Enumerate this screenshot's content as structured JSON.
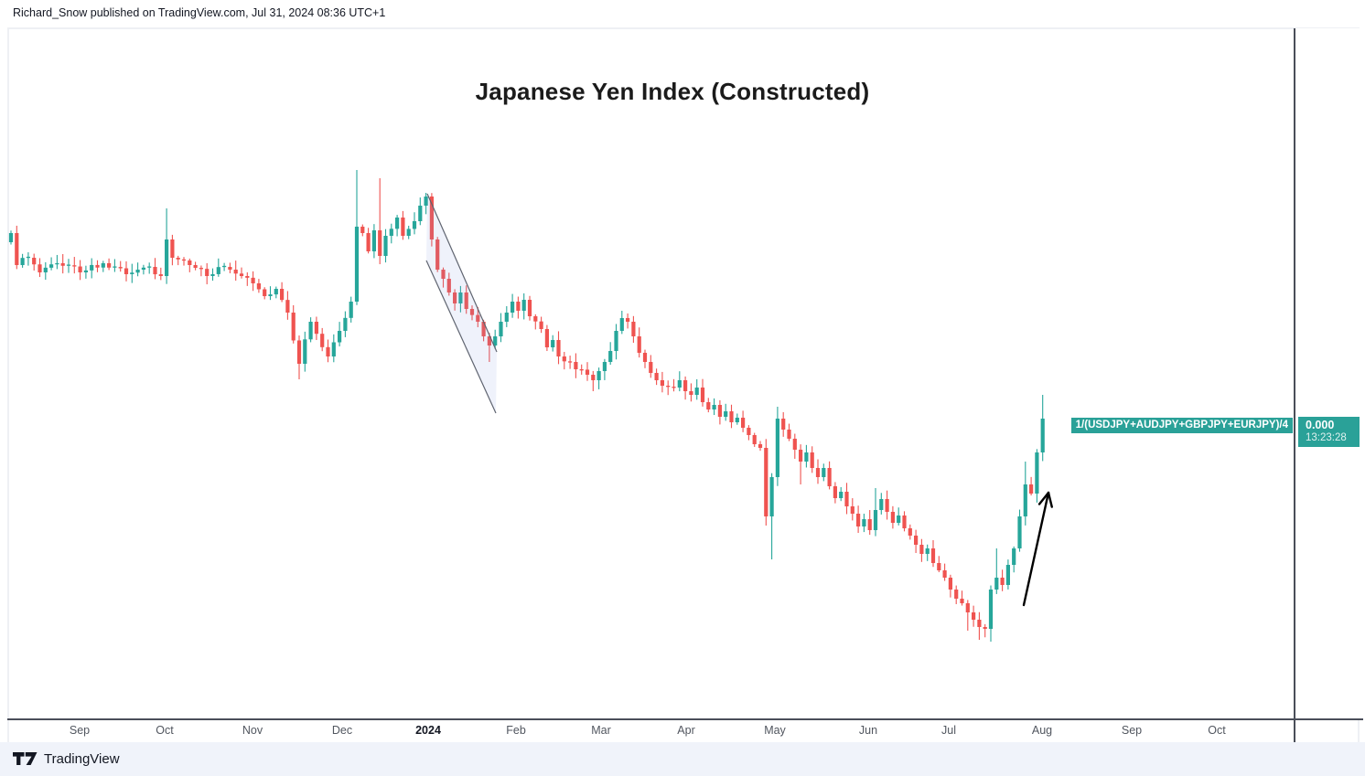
{
  "header": {
    "publish_info": "Richard_Snow published on TradingView.com, Jul 31, 2024 08:36 UTC+1"
  },
  "footer": {
    "brand": "TradingView",
    "logo_icon": "tradingview-logo"
  },
  "chart_data": {
    "type": "candlestick",
    "title": "Japanese Yen Index (Constructed)",
    "symbol_formula": "1/(USDJPY+AUDJPY+GBPJPY+EURJPY)/4",
    "last_price_label": "0.000",
    "countdown": "13:23:28",
    "y_axis_labeled": false,
    "legend_position": "none",
    "grid": false,
    "x_axis": {
      "labels": [
        "Sep",
        "Oct",
        "Nov",
        "Dec",
        "2024",
        "Feb",
        "Mar",
        "Apr",
        "May",
        "Jun",
        "Jul",
        "Aug",
        "Sep",
        "Oct"
      ],
      "positions": [
        87,
        180,
        276,
        374,
        468,
        564,
        657,
        750,
        847,
        949,
        1037,
        1139,
        1237,
        1330
      ],
      "major_index": 4
    },
    "colors": {
      "up": "#26A69A",
      "down": "#EF5350",
      "label_bg": "#2aa198",
      "arrow": "#000000",
      "channel_fill": "rgba(129,153,226,0.13)",
      "channel_stroke": "#5f6470"
    },
    "series": {
      "candle_count": 180,
      "x_start": 12,
      "pitch": 6.3,
      "body_width": 4.2,
      "wick_width": 1.1,
      "close_noise": 4,
      "wick_min": 2,
      "wick_rand": 8,
      "trend_anchors": [
        [
          0,
          255
        ],
        [
          1,
          290
        ],
        [
          3,
          282
        ],
        [
          5,
          298
        ],
        [
          8,
          288
        ],
        [
          12,
          298
        ],
        [
          16,
          288
        ],
        [
          20,
          300
        ],
        [
          24,
          292
        ],
        [
          26,
          302
        ],
        [
          27,
          262
        ],
        [
          28,
          282
        ],
        [
          31,
          290
        ],
        [
          34,
          302
        ],
        [
          37,
          292
        ],
        [
          40,
          302
        ],
        [
          42,
          310
        ],
        [
          44,
          324
        ],
        [
          46,
          316
        ],
        [
          48,
          342
        ],
        [
          50,
          398
        ],
        [
          52,
          352
        ],
        [
          55,
          390
        ],
        [
          57,
          362
        ],
        [
          59,
          330
        ],
        [
          60,
          248
        ],
        [
          61,
          255
        ],
        [
          62,
          275
        ],
        [
          63,
          252
        ],
        [
          64,
          280
        ],
        [
          65,
          258
        ],
        [
          67,
          238
        ],
        [
          68,
          258
        ],
        [
          70,
          242
        ],
        [
          71,
          225
        ],
        [
          72,
          215
        ],
        [
          73,
          262
        ],
        [
          74,
          295
        ],
        [
          75,
          305
        ],
        [
          76,
          320
        ],
        [
          77,
          332
        ],
        [
          78,
          320
        ],
        [
          79,
          338
        ],
        [
          81,
          352
        ],
        [
          82,
          368
        ],
        [
          83,
          378
        ],
        [
          84,
          368
        ],
        [
          85,
          352
        ],
        [
          86,
          342
        ],
        [
          87,
          330
        ],
        [
          88,
          340
        ],
        [
          89,
          328
        ],
        [
          90,
          346
        ],
        [
          92,
          360
        ],
        [
          93,
          380
        ],
        [
          94,
          372
        ],
        [
          95,
          390
        ],
        [
          97,
          396
        ],
        [
          98,
          404
        ],
        [
          100,
          410
        ],
        [
          101,
          416
        ],
        [
          102,
          406
        ],
        [
          103,
          396
        ],
        [
          104,
          384
        ],
        [
          105,
          362
        ],
        [
          106,
          348
        ],
        [
          107,
          352
        ],
        [
          108,
          368
        ],
        [
          109,
          386
        ],
        [
          110,
          396
        ],
        [
          111,
          408
        ],
        [
          112,
          416
        ],
        [
          113,
          422
        ],
        [
          115,
          424
        ],
        [
          116,
          416
        ],
        [
          117,
          428
        ],
        [
          118,
          432
        ],
        [
          119,
          424
        ],
        [
          120,
          440
        ],
        [
          121,
          448
        ],
        [
          122,
          443
        ],
        [
          123,
          456
        ],
        [
          124,
          450
        ],
        [
          125,
          462
        ],
        [
          126,
          457
        ],
        [
          127,
          468
        ],
        [
          128,
          476
        ],
        [
          129,
          486
        ],
        [
          130,
          490
        ],
        [
          131,
          565
        ],
        [
          132,
          522
        ],
        [
          133,
          458
        ],
        [
          134,
          470
        ],
        [
          135,
          480
        ],
        [
          136,
          492
        ],
        [
          137,
          505
        ],
        [
          138,
          495
        ],
        [
          139,
          512
        ],
        [
          140,
          522
        ],
        [
          141,
          512
        ],
        [
          142,
          532
        ],
        [
          143,
          545
        ],
        [
          144,
          538
        ],
        [
          145,
          554
        ],
        [
          146,
          562
        ],
        [
          147,
          576
        ],
        [
          148,
          568
        ],
        [
          149,
          580
        ],
        [
          150,
          558
        ],
        [
          151,
          546
        ],
        [
          152,
          560
        ],
        [
          153,
          572
        ],
        [
          154,
          564
        ],
        [
          155,
          578
        ],
        [
          156,
          586
        ],
        [
          157,
          596
        ],
        [
          158,
          606
        ],
        [
          159,
          600
        ],
        [
          160,
          616
        ],
        [
          161,
          624
        ],
        [
          162,
          632
        ],
        [
          163,
          645
        ],
        [
          164,
          655
        ],
        [
          165,
          660
        ],
        [
          166,
          670
        ],
        [
          167,
          678
        ],
        [
          168,
          686
        ],
        [
          169,
          688
        ],
        [
          170,
          645
        ],
        [
          171,
          632
        ],
        [
          172,
          640
        ],
        [
          173,
          618
        ],
        [
          174,
          600
        ],
        [
          175,
          565
        ],
        [
          176,
          530
        ],
        [
          177,
          540
        ],
        [
          178,
          495
        ],
        [
          179,
          458
        ]
      ],
      "wick_overrides": [
        [
          27,
          "h",
          228
        ],
        [
          50,
          "l",
          415
        ],
        [
          60,
          "h",
          186
        ],
        [
          64,
          "h",
          195
        ],
        [
          72,
          "h",
          211
        ],
        [
          83,
          "l",
          396
        ],
        [
          101,
          "l",
          428
        ],
        [
          106,
          "h",
          340
        ],
        [
          131,
          "l",
          575
        ],
        [
          132,
          "l",
          612
        ],
        [
          133,
          "h",
          445
        ],
        [
          137,
          "l",
          530
        ],
        [
          150,
          "h",
          534
        ],
        [
          166,
          "l",
          690
        ],
        [
          168,
          "l",
          700
        ],
        [
          170,
          "l",
          702
        ],
        [
          171,
          "h",
          600
        ],
        [
          176,
          "h",
          505
        ],
        [
          179,
          "h",
          432
        ]
      ]
    },
    "annotations": {
      "channel": {
        "upper": [
          [
            467,
            212
          ],
          [
            543,
            385
          ]
        ],
        "lower": [
          [
            466,
            285
          ],
          [
            542,
            452
          ]
        ]
      },
      "arrow": {
        "from": [
          1119,
          662
        ],
        "to": [
          1146,
          539
        ],
        "width": 2.4,
        "head_len": 16,
        "head_angle_deg": 26
      }
    }
  }
}
